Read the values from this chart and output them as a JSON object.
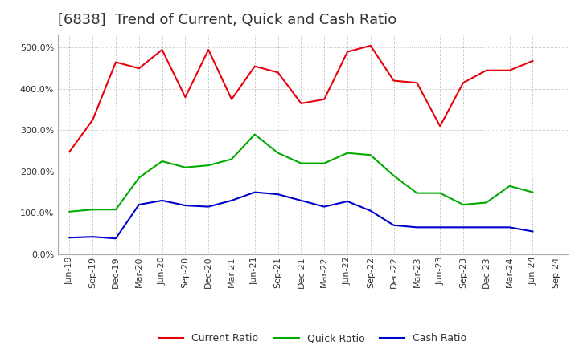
{
  "title": "[6838]  Trend of Current, Quick and Cash Ratio",
  "x_labels": [
    "Jun-19",
    "Sep-19",
    "Dec-19",
    "Mar-20",
    "Jun-20",
    "Sep-20",
    "Dec-20",
    "Mar-21",
    "Jun-21",
    "Sep-21",
    "Dec-21",
    "Mar-22",
    "Jun-22",
    "Sep-22",
    "Dec-22",
    "Mar-23",
    "Jun-23",
    "Sep-23",
    "Dec-23",
    "Mar-24",
    "Jun-24",
    "Sep-24"
  ],
  "current_ratio": [
    248,
    325,
    465,
    450,
    495,
    380,
    495,
    375,
    455,
    440,
    365,
    375,
    490,
    505,
    420,
    415,
    310,
    415,
    445,
    445,
    468,
    null
  ],
  "quick_ratio": [
    103,
    108,
    108,
    185,
    225,
    210,
    215,
    230,
    290,
    245,
    220,
    220,
    245,
    240,
    190,
    148,
    148,
    120,
    125,
    165,
    150,
    null
  ],
  "cash_ratio": [
    40,
    42,
    38,
    120,
    130,
    118,
    115,
    130,
    150,
    145,
    130,
    115,
    128,
    105,
    70,
    65,
    65,
    65,
    65,
    65,
    55,
    null
  ],
  "current_color": "#e8000d",
  "quick_color": "#00aa00",
  "cash_color": "#0000cc",
  "ylim": [
    0,
    530
  ],
  "yticks": [
    0,
    100,
    200,
    300,
    400,
    500
  ],
  "bg_color": "#ffffff",
  "grid_color": "#aaaaaa",
  "title_fontsize": 13,
  "tick_fontsize": 8,
  "legend_labels": [
    "Current Ratio",
    "Quick Ratio",
    "Cash Ratio"
  ]
}
